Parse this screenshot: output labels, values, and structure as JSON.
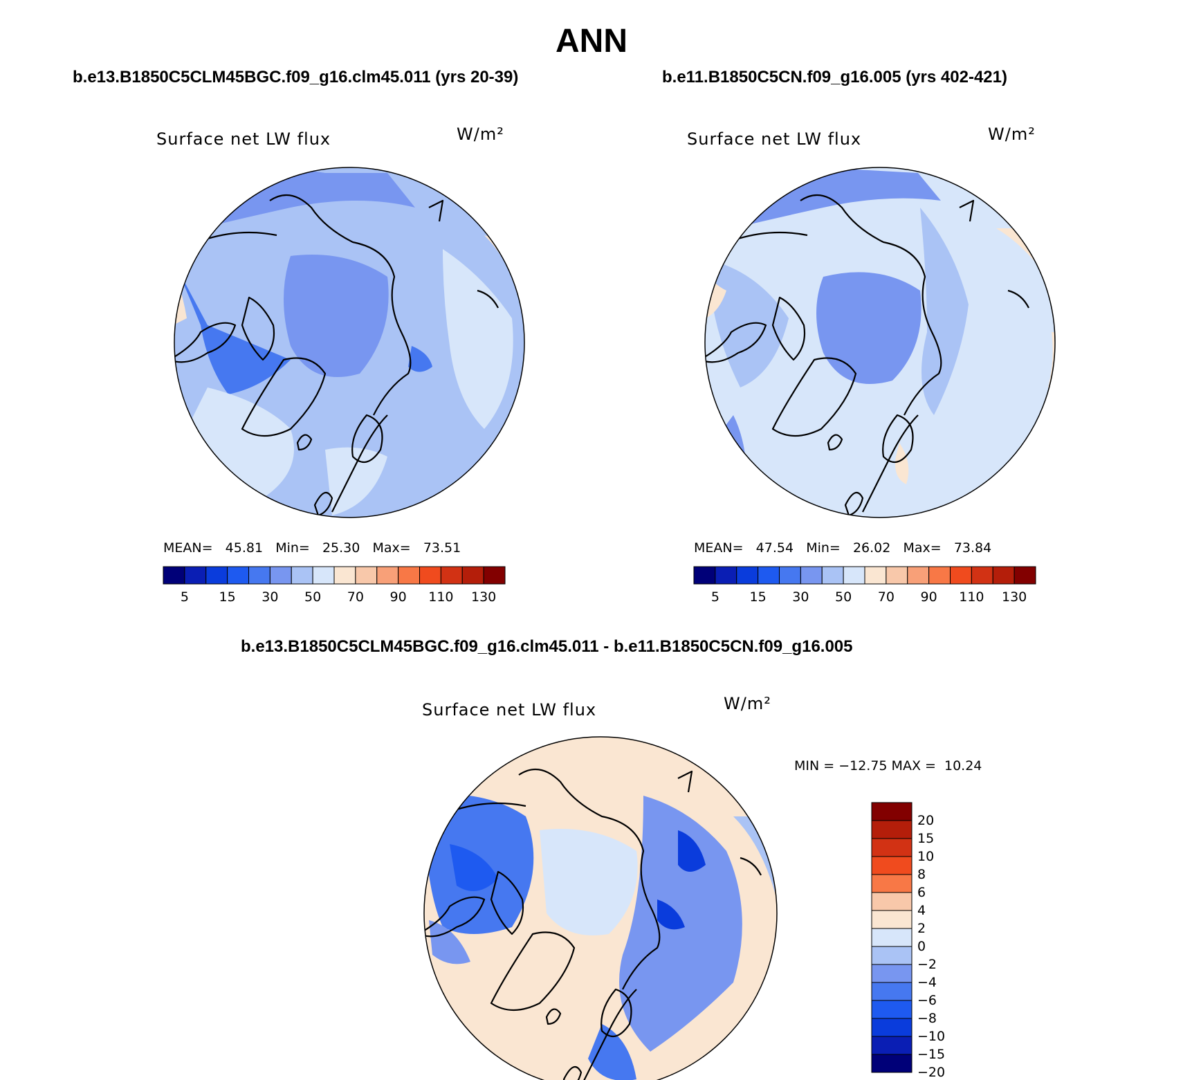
{
  "title": "ANN",
  "panels": [
    {
      "case_title": "b.e13.B1850C5CLM45BGC.f09_g16.clm45.011 (yrs 20-39)",
      "variable_label": "Surface net LW flux",
      "units": "W/m²",
      "stats": {
        "mean_label": "MEAN=",
        "mean": "45.81",
        "min_label": "Min=",
        "min": "25.30",
        "max_label": "Max=",
        "max": "73.51"
      }
    },
    {
      "case_title": "b.e11.B1850C5CN.f09_g16.005 (yrs 402-421)",
      "variable_label": "Surface net LW flux",
      "units": "W/m²",
      "stats": {
        "mean_label": "MEAN=",
        "mean": "47.54",
        "min_label": "Min=",
        "min": "26.02",
        "max_label": "Max=",
        "max": "73.84"
      }
    }
  ],
  "field_colorbar": {
    "colors": [
      "#000078",
      "#0a1eb4",
      "#0a3cdc",
      "#1e5af0",
      "#4678f0",
      "#7896f0",
      "#aac3f5",
      "#d7e6fa",
      "#fae6d2",
      "#f8c8aa",
      "#f8a078",
      "#f87846",
      "#f04b1e",
      "#d23214",
      "#b41e0a",
      "#820000"
    ],
    "tick_labels": [
      "5",
      "15",
      "30",
      "50",
      "70",
      "90",
      "110",
      "130"
    ]
  },
  "difference_panel": {
    "case_title": "b.e13.B1850C5CLM45BGC.f09_g16.clm45.011 - b.e11.B1850C5CN.f09_g16.005",
    "variable_label": "Surface net LW flux",
    "units": "W/m²",
    "minmax": "MIN = −12.75 MAX =  10.24",
    "colorbar": {
      "colors": [
        "#820000",
        "#b41e0a",
        "#d23214",
        "#f04b1e",
        "#f87846",
        "#f8c8aa",
        "#fae6d2",
        "#d7e6fa",
        "#aac3f5",
        "#7896f0",
        "#4678f0",
        "#1e5af0",
        "#0a3cdc",
        "#0a1eb4",
        "#000078"
      ],
      "tick_labels": [
        "20",
        "15",
        "10",
        "8",
        "6",
        "4",
        "2",
        "0",
        "−2",
        "−4",
        "−6",
        "−8",
        "−10",
        "−15",
        "−20"
      ]
    }
  }
}
